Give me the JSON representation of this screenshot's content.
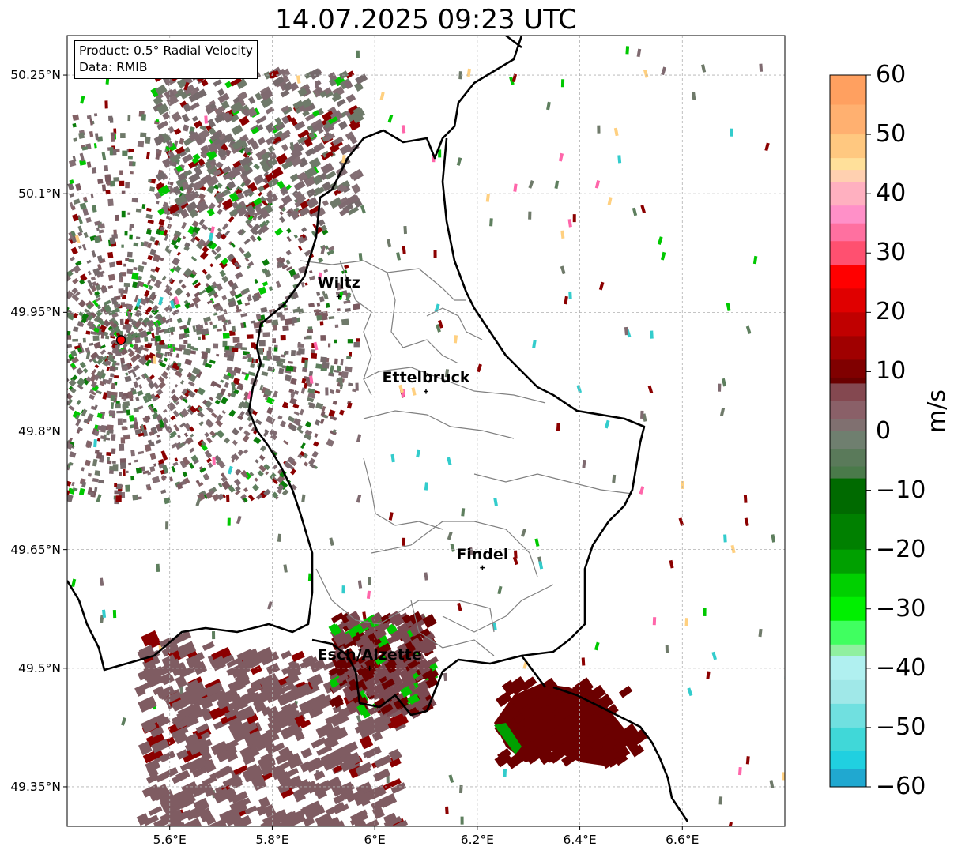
{
  "title": "14.07.2025 09:23 UTC",
  "info_box": {
    "product": "Product: 0.5° Radial Velocity",
    "source": "Data: RMIB"
  },
  "lat_ticks": [
    {
      "value": 50.25,
      "label": "50.25°N"
    },
    {
      "value": 50.1,
      "label": "50.1°N"
    },
    {
      "value": 49.95,
      "label": "49.95°N"
    },
    {
      "value": 49.8,
      "label": "49.8°N"
    },
    {
      "value": 49.65,
      "label": "49.65°N"
    },
    {
      "value": 49.5,
      "label": "49.5°N"
    },
    {
      "value": 49.35,
      "label": "49.35°N"
    }
  ],
  "lon_ticks": [
    {
      "value": 5.6,
      "label": "5.6°E"
    },
    {
      "value": 5.8,
      "label": "5.8°E"
    },
    {
      "value": 6.0,
      "label": "6°E"
    },
    {
      "value": 6.2,
      "label": "6.2°E"
    },
    {
      "value": 6.4,
      "label": "6.4°E"
    },
    {
      "value": 6.6,
      "label": "6.6°E"
    }
  ],
  "map_extent": {
    "lon_min": 5.4,
    "lon_max": 6.8,
    "lat_min": 49.3,
    "lat_max": 50.3
  },
  "cities": [
    {
      "name": "Wiltz",
      "lon": 5.93,
      "lat": 49.97
    },
    {
      "name": "Ettelbruck",
      "lon": 6.1,
      "lat": 49.85
    },
    {
      "name": "Findel",
      "lon": 6.21,
      "lat": 49.627
    },
    {
      "name": "Esch/Alzette",
      "lon": 5.99,
      "lat": 49.5
    }
  ],
  "radar_site": {
    "lon": 5.505,
    "lat": 49.915
  },
  "colorbar": {
    "unit": "m/s",
    "min": -60,
    "max": 60,
    "ticks": [
      {
        "value": 60,
        "label": "60"
      },
      {
        "value": 50,
        "label": "50"
      },
      {
        "value": 40,
        "label": "40"
      },
      {
        "value": 30,
        "label": "30"
      },
      {
        "value": 20,
        "label": "20"
      },
      {
        "value": 10,
        "label": "10"
      },
      {
        "value": 0,
        "label": "0"
      },
      {
        "value": -10,
        "label": "−10"
      },
      {
        "value": -20,
        "label": "−20"
      },
      {
        "value": -30,
        "label": "−30"
      },
      {
        "value": -40,
        "label": "−40"
      },
      {
        "value": -50,
        "label": "−50"
      },
      {
        "value": -60,
        "label": "−60"
      }
    ]
  },
  "colors": {
    "border_black": "#000000",
    "admin_gray": "#808080",
    "grid_gray": "#b0b0b0",
    "near_zero_pos": "#7f6a70",
    "near_zero_neg": "#5e7f5e",
    "outbound_dark": "#6b0000",
    "inbound_green": "#00c800",
    "radar_marker": "#ff0000"
  }
}
